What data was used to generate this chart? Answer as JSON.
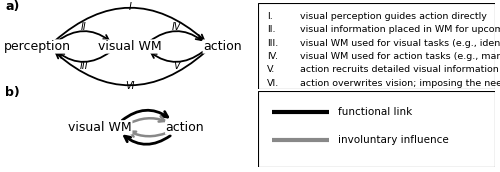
{
  "panel_a_label": "a)",
  "panel_b_label": "b)",
  "node_labels_a": {
    "perception": "perception",
    "visual_wm": "visual WM",
    "action": "action"
  },
  "legend_items": [
    [
      "I.",
      "visual perception guides action directly"
    ],
    [
      "II.",
      "visual information placed in WM for upcoming use"
    ],
    [
      "III.",
      "visual WM used for visual tasks (e.g., identification)"
    ],
    [
      "IV.",
      "visual WM used for action tasks (e.g., manual action)"
    ],
    [
      "V.",
      "action recruits detailed visual information from WM"
    ],
    [
      "VI.",
      "action overwrites vision; imposing the need for WM"
    ]
  ],
  "node_labels_b": {
    "visual_wm": "visual WM",
    "action": "action"
  },
  "legend_b": {
    "functional": "functional link",
    "involuntary": "involuntary influence"
  },
  "black": "#000000",
  "gray": "#888888",
  "white": "#ffffff",
  "bg_color": "#ffffff"
}
